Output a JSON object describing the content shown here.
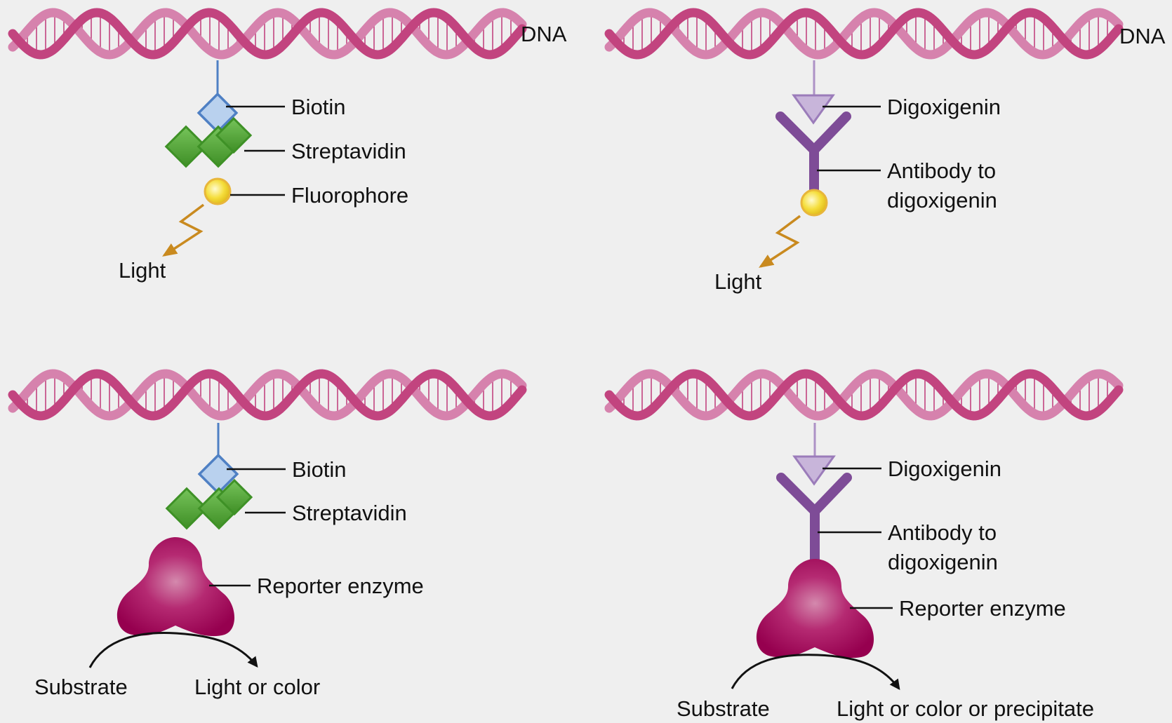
{
  "colors": {
    "background": "#efefef",
    "dna_front": "#c2447f",
    "dna_back": "#d682ad",
    "biotin": "#4f80c4",
    "biotin_fill": "#b9d1ee",
    "streptavidin": "#3e9126",
    "fluorophore": "#f2d83a",
    "light_arrow": "#c98a1f",
    "digoxigenin": "#ad92c6",
    "antibody": "#7e4c97",
    "enzyme": "#a8145f"
  },
  "panels": {
    "top_left": {
      "dna_label": "DNA",
      "labels": [
        "Biotin",
        "Streptavidin",
        "Fluorophore"
      ],
      "emission_label": "Light"
    },
    "top_right": {
      "dna_label": "DNA",
      "labels": [
        "Digoxigenin",
        "Antibody to",
        "digoxigenin"
      ],
      "emission_label": "Light"
    },
    "bottom_left": {
      "labels": [
        "Biotin",
        "Streptavidin",
        "Reporter enzyme"
      ],
      "substrate_label": "Substrate",
      "product_label": "Light or color"
    },
    "bottom_right": {
      "labels": [
        "Digoxigenin",
        "Antibody to",
        "digoxigenin",
        "Reporter enzyme"
      ],
      "substrate_label": "Substrate",
      "product_label": "Light or color or precipitate"
    }
  }
}
